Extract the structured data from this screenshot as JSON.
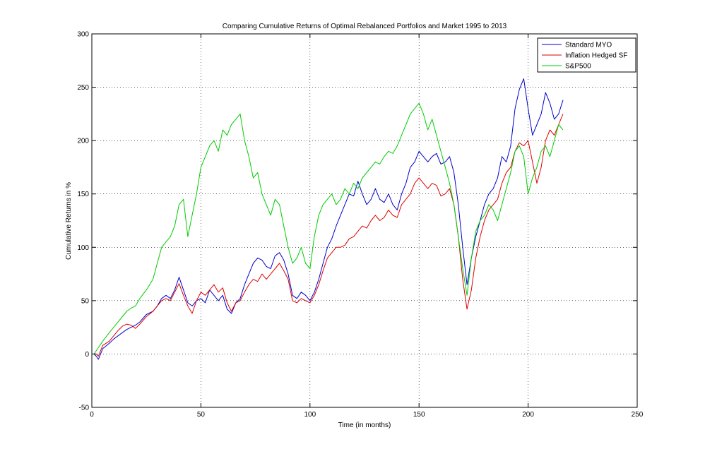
{
  "chart_data": {
    "type": "line",
    "title": "Comparing Cumulative Returns of Optimal Rebalanced Portfolios and Market 1995 to 2013",
    "xlabel": "Time (in months)",
    "ylabel": "Cumulative Returns in %",
    "xlim": [
      0,
      250
    ],
    "ylim": [
      -50,
      300
    ],
    "xticks": [
      0,
      50,
      100,
      150,
      200,
      250
    ],
    "yticks": [
      -50,
      0,
      50,
      100,
      150,
      200,
      250,
      300
    ],
    "xtick_labels": [
      "0",
      "50",
      "100",
      "150",
      "200",
      "250"
    ],
    "ytick_labels": [
      "-50",
      "0",
      "50",
      "100",
      "150",
      "200",
      "250",
      "300"
    ],
    "grid": true,
    "legend_position": "top-right",
    "series": [
      {
        "name": "Standard MYO",
        "color": "#0000cc",
        "x": [
          1,
          2,
          3,
          5,
          8,
          10,
          12,
          14,
          16,
          18,
          20,
          22,
          25,
          28,
          30,
          32,
          34,
          36,
          38,
          40,
          42,
          44,
          46,
          48,
          50,
          52,
          54,
          56,
          58,
          60,
          62,
          64,
          66,
          68,
          70,
          72,
          74,
          76,
          78,
          80,
          82,
          84,
          86,
          88,
          90,
          92,
          94,
          96,
          98,
          100,
          102,
          104,
          106,
          108,
          110,
          112,
          114,
          116,
          118,
          120,
          122,
          124,
          126,
          128,
          130,
          132,
          134,
          136,
          138,
          140,
          142,
          144,
          146,
          148,
          150,
          152,
          154,
          156,
          158,
          160,
          162,
          164,
          166,
          168,
          170,
          172,
          174,
          176,
          178,
          180,
          182,
          184,
          186,
          188,
          190,
          192,
          194,
          196,
          198,
          200,
          202,
          204,
          206,
          208,
          210,
          212,
          214,
          216
        ],
        "values": [
          0,
          -2,
          -5,
          5,
          10,
          14,
          17,
          20,
          23,
          25,
          27,
          30,
          37,
          40,
          45,
          52,
          55,
          52,
          60,
          72,
          60,
          48,
          45,
          50,
          52,
          48,
          60,
          55,
          50,
          55,
          42,
          38,
          48,
          52,
          65,
          75,
          85,
          90,
          88,
          82,
          80,
          92,
          95,
          88,
          75,
          55,
          52,
          58,
          55,
          50,
          58,
          70,
          85,
          100,
          108,
          120,
          130,
          140,
          150,
          148,
          162,
          150,
          140,
          145,
          155,
          145,
          142,
          150,
          140,
          135,
          150,
          160,
          175,
          180,
          190,
          185,
          180,
          185,
          188,
          178,
          180,
          185,
          170,
          140,
          100,
          65,
          90,
          110,
          125,
          140,
          150,
          155,
          165,
          185,
          180,
          195,
          230,
          248,
          258,
          230,
          205,
          215,
          225,
          245,
          235,
          220,
          225,
          238
        ]
      },
      {
        "name": "Inflation Hedged SF",
        "color": "#dd0000",
        "x": [
          1,
          2,
          3,
          5,
          8,
          10,
          12,
          14,
          16,
          18,
          20,
          22,
          25,
          28,
          30,
          32,
          34,
          36,
          38,
          40,
          42,
          44,
          46,
          48,
          50,
          52,
          54,
          56,
          58,
          60,
          62,
          64,
          66,
          68,
          70,
          72,
          74,
          76,
          78,
          80,
          82,
          84,
          86,
          88,
          90,
          92,
          94,
          96,
          98,
          100,
          102,
          104,
          106,
          108,
          110,
          112,
          114,
          116,
          118,
          120,
          122,
          124,
          126,
          128,
          130,
          132,
          134,
          136,
          138,
          140,
          142,
          144,
          146,
          148,
          150,
          152,
          154,
          156,
          158,
          160,
          162,
          164,
          166,
          168,
          170,
          172,
          174,
          176,
          178,
          180,
          182,
          184,
          186,
          188,
          190,
          192,
          194,
          196,
          198,
          200,
          202,
          204,
          206,
          208,
          210,
          212,
          214,
          216
        ],
        "values": [
          0,
          0,
          -2,
          8,
          12,
          17,
          22,
          26,
          28,
          27,
          24,
          28,
          35,
          40,
          45,
          50,
          52,
          50,
          58,
          66,
          55,
          45,
          38,
          50,
          58,
          55,
          60,
          65,
          58,
          62,
          48,
          40,
          48,
          50,
          58,
          65,
          70,
          68,
          75,
          70,
          75,
          80,
          85,
          78,
          70,
          50,
          48,
          52,
          50,
          48,
          55,
          65,
          78,
          90,
          95,
          100,
          100,
          102,
          108,
          110,
          115,
          120,
          118,
          125,
          130,
          125,
          128,
          135,
          130,
          128,
          140,
          145,
          150,
          160,
          165,
          160,
          155,
          160,
          158,
          148,
          150,
          155,
          140,
          110,
          70,
          42,
          60,
          90,
          110,
          125,
          135,
          140,
          145,
          160,
          170,
          175,
          190,
          198,
          195,
          200,
          180,
          160,
          175,
          200,
          210,
          205,
          215,
          225
        ]
      },
      {
        "name": "S&P500",
        "color": "#00cc00",
        "x": [
          1,
          2,
          3,
          5,
          8,
          10,
          12,
          14,
          16,
          18,
          20,
          22,
          25,
          28,
          30,
          32,
          34,
          36,
          38,
          40,
          42,
          44,
          46,
          48,
          50,
          52,
          54,
          56,
          58,
          60,
          62,
          64,
          66,
          68,
          70,
          72,
          74,
          76,
          78,
          80,
          82,
          84,
          86,
          88,
          90,
          92,
          94,
          96,
          98,
          100,
          102,
          104,
          106,
          108,
          110,
          112,
          114,
          116,
          118,
          120,
          122,
          124,
          126,
          128,
          130,
          132,
          134,
          136,
          138,
          140,
          142,
          144,
          146,
          148,
          150,
          152,
          154,
          156,
          158,
          160,
          162,
          164,
          166,
          168,
          170,
          172,
          174,
          176,
          178,
          180,
          182,
          184,
          186,
          188,
          190,
          192,
          194,
          196,
          198,
          200,
          202,
          204,
          206,
          208,
          210,
          212,
          214,
          216
        ],
        "values": [
          0,
          3,
          6,
          12,
          20,
          25,
          30,
          35,
          40,
          43,
          45,
          52,
          60,
          70,
          85,
          100,
          105,
          110,
          120,
          140,
          145,
          110,
          130,
          150,
          175,
          185,
          195,
          200,
          190,
          210,
          205,
          215,
          220,
          225,
          200,
          185,
          165,
          170,
          150,
          140,
          130,
          145,
          140,
          120,
          100,
          85,
          90,
          100,
          85,
          80,
          110,
          130,
          140,
          145,
          150,
          140,
          145,
          155,
          150,
          160,
          155,
          165,
          170,
          175,
          180,
          178,
          185,
          190,
          188,
          195,
          205,
          215,
          225,
          230,
          235,
          225,
          210,
          220,
          205,
          190,
          175,
          160,
          140,
          110,
          80,
          55,
          90,
          115,
          125,
          130,
          140,
          135,
          125,
          140,
          155,
          170,
          190,
          195,
          185,
          150,
          165,
          175,
          190,
          195,
          185,
          200,
          215,
          210
        ]
      }
    ]
  }
}
